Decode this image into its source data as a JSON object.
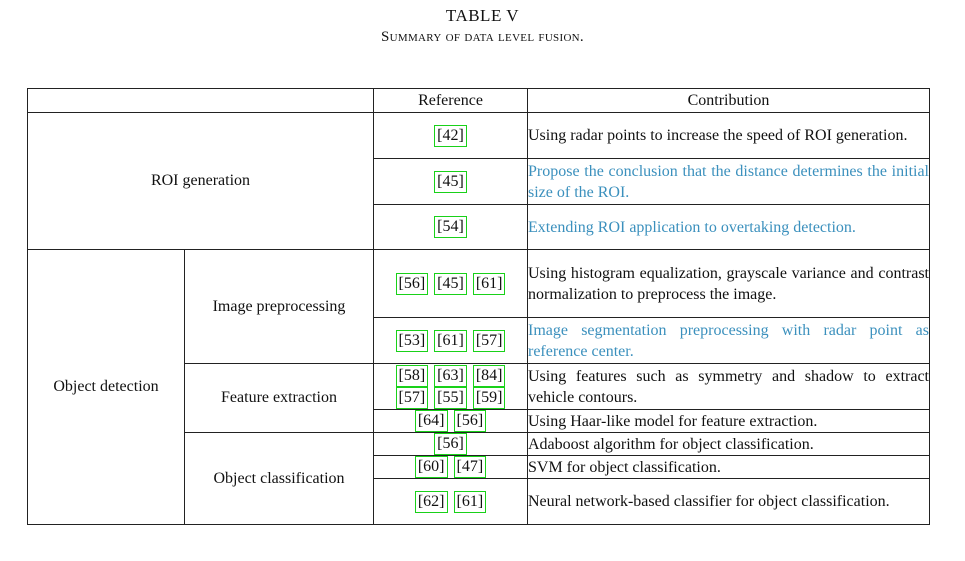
{
  "caption": {
    "title": "TABLE V",
    "subtitle": "Summary of data level fusion."
  },
  "table": {
    "headers": {
      "blank": "",
      "reference": "Reference",
      "contribution": "Contribution"
    },
    "roi": {
      "label": "ROI generation",
      "rows": [
        {
          "refs": [
            "[42]"
          ],
          "contribution": "Using radar points to increase the speed of ROI generation."
        },
        {
          "refs": [
            "[45]"
          ],
          "contribution": "Propose the conclusion that the distance determines the initial size of the ROI."
        },
        {
          "refs": [
            "[54]"
          ],
          "contribution": "Extending ROI application to overtaking detection."
        }
      ]
    },
    "object_detection": {
      "label": "Object detection",
      "image_preprocessing": {
        "label": "Image preprocessing",
        "rows": [
          {
            "refs": [
              "[56]",
              "[45]",
              "[61]"
            ],
            "contribution": "Using histogram equalization, grayscale variance and contrast normalization to preprocess the image."
          },
          {
            "refs": [
              "[53]",
              "[61]",
              "[57]"
            ],
            "contribution": "Image segmentation preprocessing with radar point as reference center."
          }
        ]
      },
      "feature_extraction": {
        "label": "Feature extraction",
        "rows": [
          {
            "refs_line1": [
              "[58]",
              "[63]",
              "[84]"
            ],
            "refs_line2": [
              "[57]",
              "[55]",
              "[59]"
            ],
            "contribution": "Using features such as symmetry and shadow to extract vehicle contours."
          },
          {
            "refs": [
              "[64]",
              "[56]"
            ],
            "contribution": "Using Haar-like model for feature extraction."
          }
        ]
      },
      "object_classification": {
        "label": "Object classification",
        "rows": [
          {
            "refs": [
              "[56]"
            ],
            "contribution": "Adaboost algorithm for object classification."
          },
          {
            "refs": [
              "[60]",
              "[47]"
            ],
            "contribution": "SVM for object classification."
          },
          {
            "refs": [
              "[62]",
              "[61]"
            ],
            "contribution": "Neural network-based classifier for object classification."
          }
        ]
      }
    }
  },
  "colors": {
    "highlight_text": "#3b90bd",
    "citation_box": "#19d119"
  }
}
